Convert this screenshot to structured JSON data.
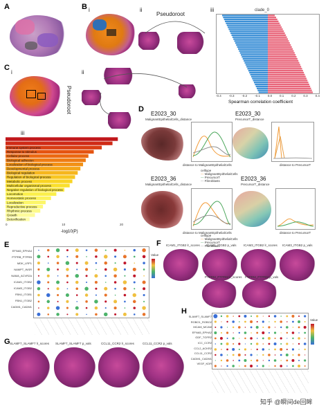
{
  "panels": {
    "A": "A",
    "B": "B",
    "B_i": "i",
    "B_ii": "ii",
    "B_iii": "iii",
    "B_pseudoroot": "Pseudoroot",
    "C": "C",
    "C_i": "i",
    "C_ii": "ii",
    "C_iii": "iii",
    "C_pseudoroot": "Pseudoroot",
    "D": "D",
    "E": "E",
    "F": "F",
    "G": "G",
    "H": "H"
  },
  "B_iii_chart": {
    "title": "clade_0",
    "xlabel": "Spearman correlation coefficient",
    "xticks": [
      "-0.4",
      "-0.3",
      "-0.2",
      "-0.1",
      "0.0",
      "0.1",
      "0.2",
      "0.3",
      "0.4"
    ],
    "colors": {
      "neg": "#3a8fd6",
      "pos": "#e8657a"
    }
  },
  "C_iii_chart": {
    "xlabel": "-log10(P)",
    "xticks": [
      "0",
      "10",
      "20"
    ],
    "terms": [
      "",
      "",
      "Immune system process",
      "Response to stimulus",
      "Cellular process",
      "Biological adhesion",
      "Localization of biological process",
      "Developmental process",
      "Biological regulation",
      "Regulation of biological process",
      "Metabolic process",
      "Multicellular organismal process",
      "Negative regulation of biological process",
      "Locomotion",
      "Homeostatic process",
      "Localization",
      "Reproductive process",
      "Rhythmic process",
      "Growth",
      "Detoxification"
    ],
    "values": [
      21,
      20,
      18,
      16.5,
      15.5,
      15,
      14.5,
      14,
      13.5,
      13,
      12.5,
      12,
      11,
      9.5,
      8.5,
      7.5,
      7,
      6.5,
      5.5,
      4.5
    ]
  },
  "D": {
    "row1_title_a": "E2023_30",
    "row1_sub_a": "MalignantEpithelialCells_distance",
    "row1_title_b": "E2023_30",
    "row1_sub_b": "PrecursorT_distance",
    "row2_title_a": "E2023_36",
    "row2_sub_a": "MalignantEpithelialCells_distance",
    "row2_title_b": "E2023_36",
    "row2_sub_b": "PrecursorT_distance",
    "xlabel_a": "distance to MalignantEpithelialCells",
    "xlabel_b": "distance to PrecursorT",
    "legend_title": "celltype",
    "legend": [
      "MalignantEpithelialCells",
      "PrecursorT",
      "Fibroblasts"
    ]
  },
  "E": {
    "rows": [
      "EFNA5_EPHA4",
      "PTPRB_PTPRB",
      "MDK_LRP1",
      "NAMPT_INSR",
      "NAMA_ACVR2A",
      "",
      "ICAM1_ITGB2",
      "ICAM3_ITGB2",
      "FBN1_ITGB1",
      "FBN1_ITGB2",
      "CADM1_CADM1"
    ],
    "legend_title": "Value"
  },
  "F": {
    "row1": [
      "ICAM1_ITGB2 lr_scores",
      "ICAM1_ITGB2 p_vals",
      "ICAM3_ITGB2 lr_scores",
      "ICAM3_ITGB2 p_vals"
    ],
    "row2": [
      "PTPRM_PTPRM lr_scores",
      "PTPRM_PTPRM p_vals"
    ]
  },
  "G": {
    "titles": [
      "SLAMF7_SLAMF7 lr_scores",
      "SLAMF7_SLAMF7 p_vals",
      "CCL11_CCR2 lr_scores",
      "CCL11_CCR2 p_vals"
    ]
  },
  "H": {
    "rows": [
      "SLAMF7_SLAMF7",
      "ROBO1_ROBO2",
      "MCAM_MCAM",
      "EFNA5_EPHA2",
      "GDF_TGFR2",
      "ICC_CCR2",
      "CCL2_ACKR2",
      "CCL11_CCR2",
      "CADM1_CADM1",
      "VEGF_KDR"
    ],
    "legend_title": "Value"
  },
  "watermark": "知乎 @瞬间de回眸"
}
